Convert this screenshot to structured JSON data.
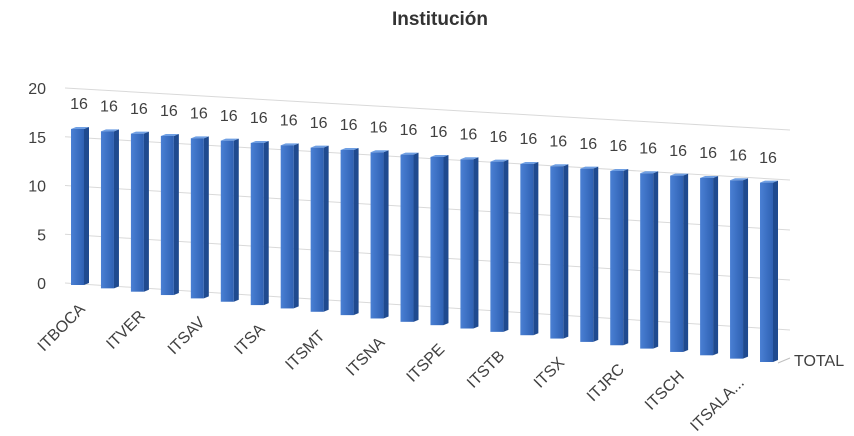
{
  "chart_data": {
    "type": "bar3d",
    "title": "Institución",
    "categories": [
      "ITBOCA",
      null,
      "ITVER",
      null,
      "ITSAV",
      null,
      "ITSA",
      null,
      "ITSMT",
      null,
      "ITSNA",
      null,
      "ITSPE",
      null,
      "ITSTB",
      null,
      "ITSX",
      null,
      "ITJRC",
      null,
      "ITSCH",
      null,
      "ITSALA...",
      null
    ],
    "series": [
      {
        "name": "TOTAL",
        "color": "#3a6fc4",
        "values": [
          16,
          16,
          16,
          16,
          16,
          16,
          16,
          16,
          16,
          16,
          16,
          16,
          16,
          16,
          16,
          16,
          16,
          16,
          16,
          16,
          16,
          16,
          16,
          16
        ]
      }
    ],
    "ylim": [
      0,
      20
    ],
    "yticks": [
      0,
      5,
      10,
      15,
      20
    ],
    "grid": true
  }
}
